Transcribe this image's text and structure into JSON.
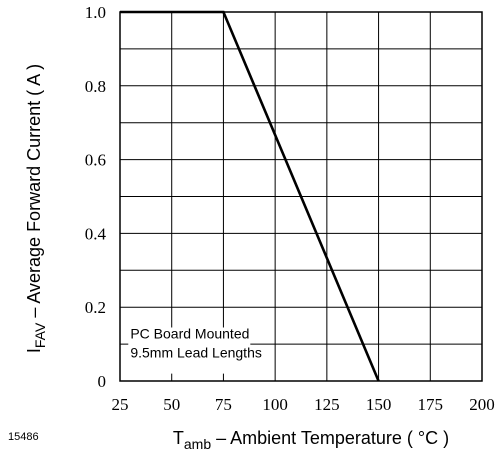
{
  "chart_data": {
    "type": "line",
    "figure_number": "15486",
    "ylabel": {
      "symbol": "I",
      "subscript": "FAV",
      "text": " – Average Forward Current ( A )"
    },
    "xlabel": {
      "symbol": "T",
      "subscript": "amb",
      "text": " – Ambient Temperature ( °C )"
    },
    "annotation_lines": [
      "PC Board Mounted",
      "9.5mm Lead Lengths"
    ],
    "xlim": [
      25,
      200
    ],
    "ylim": [
      0,
      1.0
    ],
    "x_ticks": [
      25,
      50,
      75,
      100,
      125,
      150,
      175,
      200
    ],
    "x_tick_labels": [
      "25",
      "50",
      "75",
      "100",
      "125",
      "150",
      "175",
      "200"
    ],
    "y_ticks": [
      0,
      0.2,
      0.4,
      0.6,
      0.8,
      1.0
    ],
    "y_tick_labels": [
      "0",
      "0.2",
      "0.4",
      "0.6",
      "0.8",
      "1.0"
    ],
    "x_grid": [
      25,
      50,
      75,
      100,
      125,
      150,
      175,
      200
    ],
    "y_grid": [
      0,
      0.1,
      0.2,
      0.3,
      0.4,
      0.5,
      0.6,
      0.7,
      0.8,
      0.9,
      1.0
    ],
    "grid": true,
    "series": [
      {
        "x": [
          25,
          75,
          150
        ],
        "y": [
          1.0,
          1.0,
          0
        ]
      }
    ]
  }
}
